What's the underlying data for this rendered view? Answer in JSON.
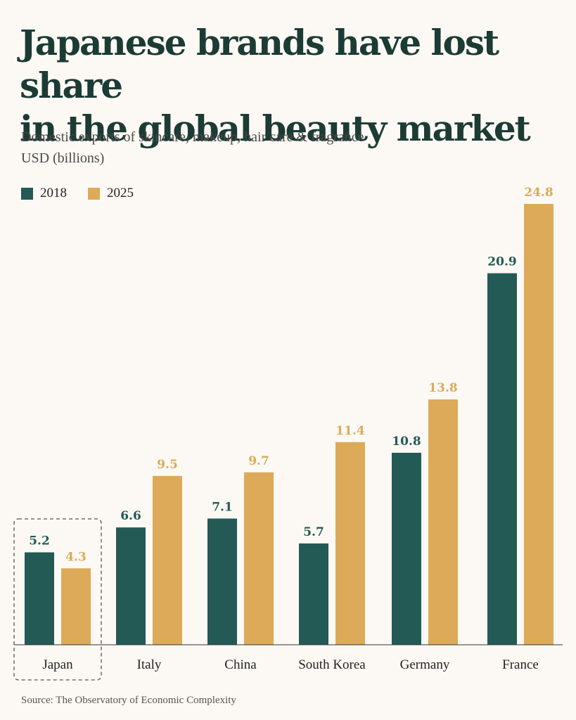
{
  "title_line1": "Japanese brands have lost share",
  "title_line2": "in the global beauty market",
  "subtitle_line1": "Domestic exports of skincare, makeup, hair care & fragrance",
  "subtitle_line2": "USD (billions)",
  "source": "Source: The Observatory of Economic Complexity",
  "colors": {
    "s2018": "#245a55",
    "s2025": "#dcaa58",
    "axis": "#333333",
    "highlight": "#555555"
  },
  "highlighted_category": "Japan",
  "chart_data": {
    "type": "bar",
    "categories": [
      "Japan",
      "Italy",
      "China",
      "South Korea",
      "Germany",
      "France"
    ],
    "series": [
      {
        "name": "2018",
        "values": [
          5.2,
          6.6,
          7.1,
          5.7,
          10.8,
          20.9
        ]
      },
      {
        "name": "2025",
        "values": [
          4.3,
          9.5,
          9.7,
          11.4,
          13.8,
          24.8
        ]
      }
    ],
    "data_labels": [
      [
        "5.2",
        "6.6",
        "7.1",
        "5.7",
        "10.8",
        "20.9"
      ],
      [
        "4.3",
        "9.5",
        "9.7",
        "11.4",
        "13.8",
        "24.8"
      ]
    ],
    "legend": "top-left",
    "grid": false
  }
}
